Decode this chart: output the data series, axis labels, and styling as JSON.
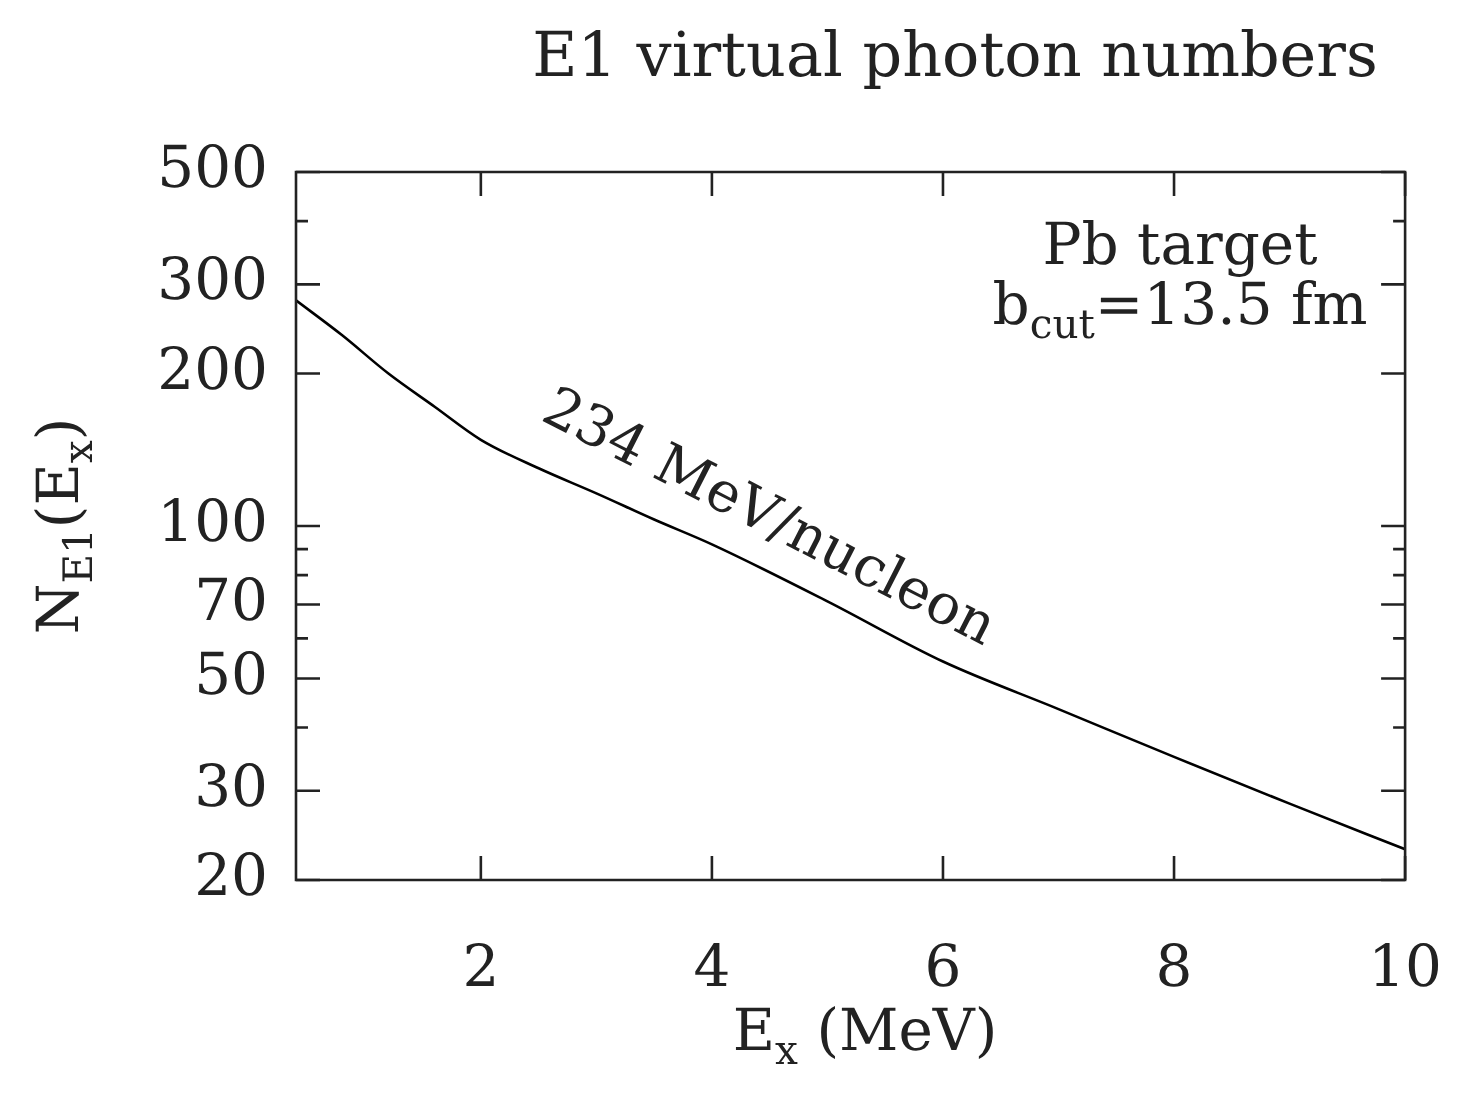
{
  "chart_data": {
    "type": "line",
    "title": "E1 virtual photon numbers",
    "xlabel": "E$_{x}$ (MeV)",
    "ylabel": "N$_{E1}$(E$_{x}$)",
    "annotations": [
      "Pb target\nb$_{cut}$=13.5 fm",
      "234 MeV/nucleon"
    ],
    "log": "y",
    "marker": "none",
    "xlim": [
      0.4,
      10
    ],
    "xticks": [
      2,
      4,
      6,
      8,
      10
    ],
    "ylim": [
      20,
      500
    ],
    "yticks": [
      20,
      30,
      {
        "value": 40,
        "label": null
      },
      50,
      {
        "value": 60,
        "label": null
      },
      70,
      {
        "value": 80,
        "label": null
      },
      {
        "value": 90,
        "label": null
      },
      100,
      200,
      300,
      {
        "value": 400,
        "label": null
      },
      500
    ],
    "series": [
      {
        "color": "#000000",
        "x": [
          0.4,
          0.8,
          1.2,
          1.6,
          2,
          2.5,
          3,
          3.5,
          4,
          5,
          6,
          7,
          8,
          9,
          10
        ],
        "values": [
          279,
          238,
          200,
          172,
          148,
          130,
          116,
          103,
          92,
          71,
          54,
          43.5,
          35,
          28.3,
          23
        ]
      }
    ]
  }
}
